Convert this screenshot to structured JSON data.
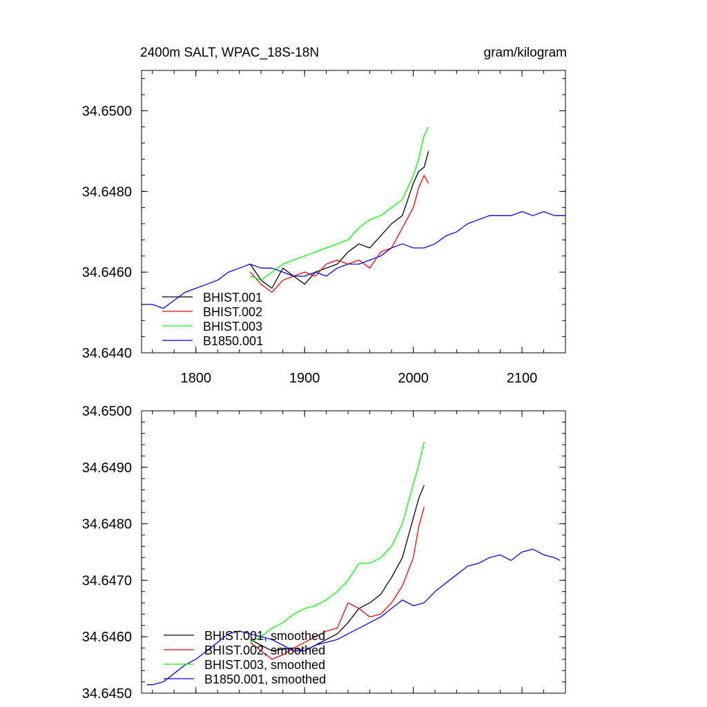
{
  "chart_data": [
    {
      "type": "line",
      "title_left": "2400m SALT, WPAC_18S-18N",
      "title_right": "gram/kilogram",
      "xlabel": "",
      "ylabel": "",
      "xlim": [
        1750,
        2140
      ],
      "ylim": [
        34.644,
        34.651
      ],
      "xticks": [
        1800,
        1900,
        2000,
        2100
      ],
      "xtick_labels": [
        "1800",
        "1900",
        "2000",
        "2100"
      ],
      "yticks": [
        34.644,
        34.646,
        34.648,
        34.65
      ],
      "ytick_labels": [
        "34.6440",
        "34.6460",
        "34.6480",
        "34.6500"
      ],
      "grid": false,
      "legend_position": "bottom-left",
      "series": [
        {
          "name": "BHIST.001",
          "color": "#000000",
          "x": [
            1850,
            1860,
            1870,
            1880,
            1890,
            1900,
            1910,
            1920,
            1930,
            1940,
            1950,
            1960,
            1970,
            1980,
            1990,
            2000,
            2005,
            2010,
            2014
          ],
          "y": [
            34.6462,
            34.6458,
            34.6456,
            34.6461,
            34.6459,
            34.6457,
            34.646,
            34.6461,
            34.6462,
            34.6465,
            34.6467,
            34.6466,
            34.6469,
            34.6472,
            34.6474,
            34.6482,
            34.6485,
            34.6486,
            34.649
          ]
        },
        {
          "name": "BHIST.002",
          "color": "#ff0000",
          "x": [
            1850,
            1860,
            1870,
            1880,
            1890,
            1900,
            1910,
            1920,
            1930,
            1940,
            1950,
            1960,
            1970,
            1980,
            1990,
            2000,
            2005,
            2010,
            2014
          ],
          "y": [
            34.646,
            34.6457,
            34.6455,
            34.6458,
            34.6459,
            34.646,
            34.6459,
            34.6462,
            34.6463,
            34.6462,
            34.6463,
            34.6461,
            34.6465,
            34.6466,
            34.6471,
            34.6476,
            34.6481,
            34.6484,
            34.6482
          ]
        },
        {
          "name": "BHIST.003",
          "color": "#00ff00",
          "x": [
            1850,
            1860,
            1870,
            1880,
            1890,
            1900,
            1910,
            1920,
            1930,
            1940,
            1950,
            1960,
            1970,
            1980,
            1990,
            2000,
            2005,
            2010,
            2014
          ],
          "y": [
            34.6459,
            34.6458,
            34.646,
            34.6462,
            34.6463,
            34.6464,
            34.6465,
            34.6466,
            34.6467,
            34.6468,
            34.6471,
            34.6473,
            34.6474,
            34.6476,
            34.6478,
            34.6484,
            34.6488,
            34.6494,
            34.6496
          ]
        },
        {
          "name": "B1850.001",
          "color": "#0000ff",
          "x": [
            1750,
            1760,
            1770,
            1780,
            1790,
            1800,
            1810,
            1820,
            1830,
            1840,
            1850,
            1860,
            1870,
            1880,
            1890,
            1900,
            1910,
            1920,
            1930,
            1940,
            1950,
            1960,
            1970,
            1980,
            1990,
            2000,
            2010,
            2020,
            2030,
            2040,
            2050,
            2060,
            2070,
            2080,
            2090,
            2100,
            2110,
            2120,
            2130,
            2140
          ],
          "y": [
            34.6452,
            34.6452,
            34.6451,
            34.6453,
            34.6455,
            34.6456,
            34.6457,
            34.6458,
            34.646,
            34.6461,
            34.6462,
            34.6461,
            34.6461,
            34.646,
            34.6459,
            34.6459,
            34.646,
            34.6459,
            34.6461,
            34.6462,
            34.6462,
            34.6463,
            34.6464,
            34.6466,
            34.6467,
            34.6466,
            34.6466,
            34.6467,
            34.6469,
            34.647,
            34.6472,
            34.6473,
            34.6474,
            34.6474,
            34.6474,
            34.6475,
            34.6474,
            34.6475,
            34.6474,
            34.6474
          ]
        }
      ]
    },
    {
      "type": "line",
      "title_left": "",
      "title_right": "",
      "xlabel": "",
      "ylabel": "",
      "xlim": [
        1750,
        2140
      ],
      "ylim": [
        34.645,
        34.65
      ],
      "xticks": [
        1800,
        1900,
        2000,
        2100
      ],
      "xtick_labels": [],
      "yticks": [
        34.645,
        34.646,
        34.647,
        34.648,
        34.649,
        34.65
      ],
      "ytick_labels": [
        "34.6450",
        "34.6460",
        "34.6470",
        "34.6480",
        "34.6490",
        "34.6500"
      ],
      "grid": false,
      "legend_position": "bottom-left",
      "series": [
        {
          "name": "BHIST.001, smoothed",
          "color": "#000000",
          "x": [
            1850,
            1860,
            1870,
            1880,
            1890,
            1900,
            1910,
            1920,
            1930,
            1940,
            1950,
            1960,
            1970,
            1980,
            1990,
            2000,
            2005,
            2010
          ],
          "y": [
            34.64595,
            34.64585,
            34.64575,
            34.64578,
            34.6458,
            34.64575,
            34.64585,
            34.64595,
            34.64605,
            34.64625,
            34.6465,
            34.6466,
            34.64675,
            34.64705,
            34.6474,
            34.6481,
            34.64845,
            34.64868
          ]
        },
        {
          "name": "BHIST.002, smoothed",
          "color": "#ff0000",
          "x": [
            1850,
            1860,
            1870,
            1880,
            1890,
            1900,
            1910,
            1920,
            1930,
            1940,
            1950,
            1960,
            1970,
            1980,
            1990,
            2000,
            2005,
            2010
          ],
          "y": [
            34.6459,
            34.64575,
            34.6456,
            34.64568,
            34.6458,
            34.6459,
            34.646,
            34.6461,
            34.64615,
            34.6466,
            34.6465,
            34.64635,
            34.6464,
            34.6466,
            34.6469,
            34.6474,
            34.64795,
            34.6483
          ]
        },
        {
          "name": "BHIST.003, smoothed",
          "color": "#00ff00",
          "x": [
            1850,
            1860,
            1870,
            1880,
            1890,
            1900,
            1910,
            1920,
            1930,
            1940,
            1950,
            1960,
            1970,
            1980,
            1990,
            2000,
            2005,
            2010
          ],
          "y": [
            34.6459,
            34.646,
            34.64615,
            34.64625,
            34.6464,
            34.6465,
            34.64655,
            34.64665,
            34.6468,
            34.647,
            34.6473,
            34.6473,
            34.6474,
            34.6476,
            34.648,
            34.6487,
            34.64905,
            34.64945
          ]
        },
        {
          "name": "B1850.001, smoothed",
          "color": "#0000ff",
          "x": [
            1755,
            1760,
            1770,
            1780,
            1790,
            1800,
            1810,
            1820,
            1830,
            1840,
            1850,
            1860,
            1870,
            1880,
            1890,
            1900,
            1910,
            1920,
            1930,
            1940,
            1950,
            1960,
            1970,
            1980,
            1990,
            2000,
            2010,
            2020,
            2030,
            2040,
            2050,
            2060,
            2070,
            2080,
            2090,
            2100,
            2110,
            2120,
            2130,
            2135
          ],
          "y": [
            34.64515,
            34.64515,
            34.6452,
            34.64535,
            34.6455,
            34.6456,
            34.64575,
            34.6459,
            34.64605,
            34.6461,
            34.64605,
            34.646,
            34.64595,
            34.64585,
            34.64575,
            34.64575,
            34.64585,
            34.6459,
            34.64595,
            34.64605,
            34.64615,
            34.64625,
            34.64635,
            34.6465,
            34.64665,
            34.64655,
            34.6466,
            34.6468,
            34.64695,
            34.6471,
            34.64725,
            34.6473,
            34.6474,
            34.64745,
            34.64735,
            34.6475,
            34.64755,
            34.64745,
            34.6474,
            34.64735
          ]
        }
      ]
    }
  ]
}
